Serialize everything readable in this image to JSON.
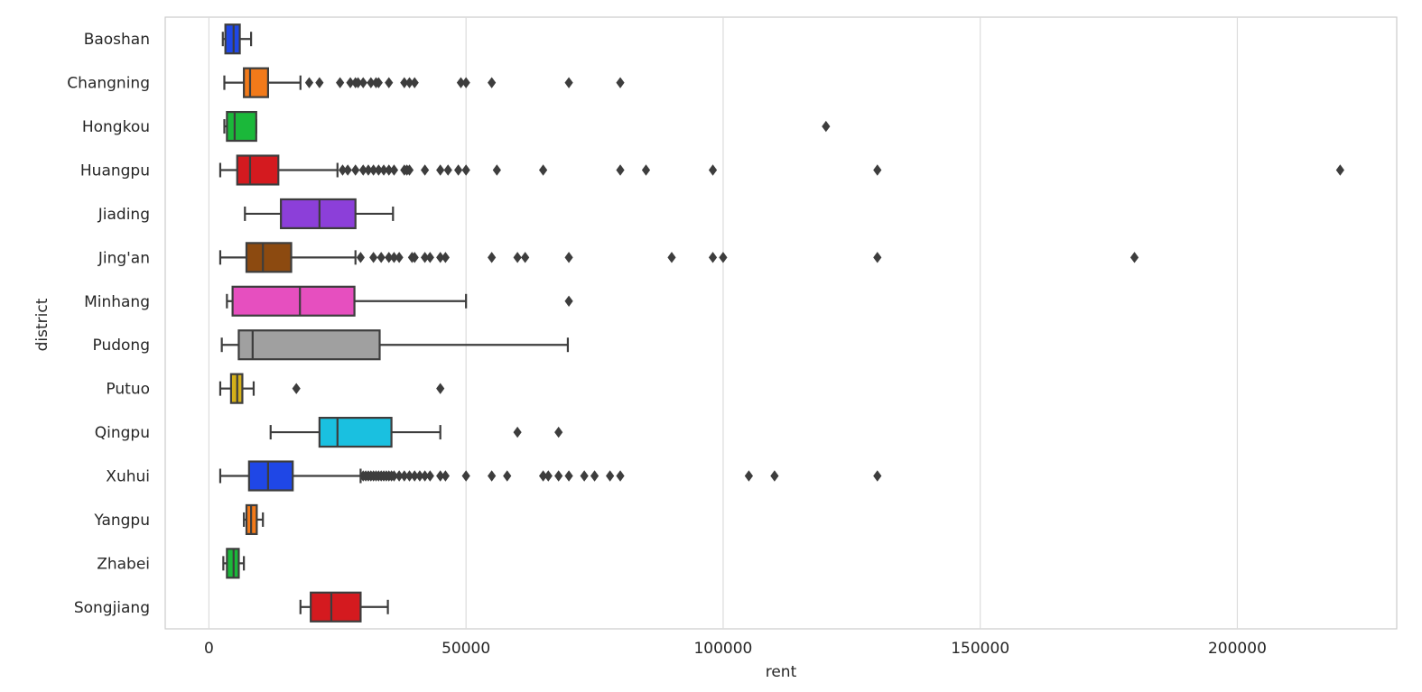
{
  "chart_data": {
    "type": "boxplot",
    "orientation": "horizontal",
    "xlabel": "rent",
    "ylabel": "district",
    "xlim": [
      -8500,
      231000
    ],
    "xticks": [
      0,
      50000,
      100000,
      150000,
      200000
    ],
    "xtick_labels": [
      "0",
      "50000",
      "100000",
      "150000",
      "200000"
    ],
    "grid": "vertical",
    "categories": [
      {
        "name": "Baoshan",
        "color": "#1f47e6",
        "whislo": 2700,
        "q1": 3200,
        "median": 4800,
        "q3": 6000,
        "whishi": 8200,
        "fliers": []
      },
      {
        "name": "Changning",
        "color": "#f27a1a",
        "whislo": 3000,
        "q1": 6800,
        "median": 8000,
        "q3": 11500,
        "whishi": 17800,
        "fliers": [
          19500,
          21500,
          25500,
          27500,
          28500,
          29000,
          30000,
          31500,
          32500,
          33000,
          35000,
          38000,
          39000,
          40000,
          49000,
          50000,
          55000,
          70000,
          80000
        ]
      },
      {
        "name": "Hongkou",
        "color": "#1bb83a",
        "whislo": 3000,
        "q1": 3500,
        "median": 5000,
        "q3": 9200,
        "whishi": 9200,
        "fliers": [
          120000
        ]
      },
      {
        "name": "Huangpu",
        "color": "#d41a1f",
        "whislo": 2200,
        "q1": 5500,
        "median": 8000,
        "q3": 13500,
        "whishi": 25000,
        "fliers": [
          26000,
          27000,
          28500,
          30000,
          31000,
          32000,
          33000,
          34000,
          35000,
          36000,
          38000,
          38500,
          39000,
          42000,
          45000,
          46500,
          48500,
          50000,
          56000,
          65000,
          80000,
          85000,
          98000,
          130000,
          220000
        ]
      },
      {
        "name": "Jiading",
        "color": "#8c3fd9",
        "whislo": 7000,
        "q1": 14000,
        "median": 21500,
        "q3": 28500,
        "whishi": 35800,
        "fliers": []
      },
      {
        "name": "Jing'an",
        "color": "#8c4a10",
        "whislo": 2200,
        "q1": 7300,
        "median": 10500,
        "q3": 16000,
        "whishi": 28500,
        "fliers": [
          29500,
          32000,
          33500,
          35000,
          36000,
          37000,
          39500,
          40000,
          42000,
          43000,
          45000,
          46000,
          55000,
          60000,
          61500,
          70000,
          90000,
          98000,
          100000,
          130000,
          180000
        ]
      },
      {
        "name": "Minhang",
        "color": "#e64fbf",
        "whislo": 3500,
        "q1": 4600,
        "median": 17700,
        "q3": 28300,
        "whishi": 50000,
        "fliers": [
          70000
        ]
      },
      {
        "name": "Pudong",
        "color": "#a0a0a0",
        "whislo": 2500,
        "q1": 5800,
        "median": 8500,
        "q3": 33200,
        "whishi": 69800,
        "fliers": []
      },
      {
        "name": "Putuo",
        "color": "#d4b01a",
        "whislo": 2200,
        "q1": 4300,
        "median": 5500,
        "q3": 6500,
        "whishi": 8700,
        "fliers": [
          17000,
          45000
        ]
      },
      {
        "name": "Qingpu",
        "color": "#1ac0e0",
        "whislo": 12000,
        "q1": 21500,
        "median": 25000,
        "q3": 35500,
        "whishi": 45000,
        "fliers": [
          60000,
          68000
        ]
      },
      {
        "name": "Xuhui",
        "color": "#1f47e6",
        "whislo": 2200,
        "q1": 7800,
        "median": 11500,
        "q3": 16300,
        "whishi": 29500,
        "fliers": [
          30000,
          30500,
          31000,
          31500,
          32000,
          32500,
          33000,
          33500,
          34000,
          34500,
          35000,
          35500,
          36000,
          37000,
          38000,
          39000,
          40000,
          41000,
          42000,
          43000,
          45000,
          46000,
          50000,
          55000,
          58000,
          65000,
          66000,
          68000,
          70000,
          73000,
          75000,
          78000,
          80000,
          105000,
          110000,
          130000
        ]
      },
      {
        "name": "Yangpu",
        "color": "#f27a1a",
        "whislo": 6800,
        "q1": 7300,
        "median": 8200,
        "q3": 9300,
        "whishi": 10500,
        "fliers": []
      },
      {
        "name": "Zhabei",
        "color": "#1bb83a",
        "whislo": 2800,
        "q1": 3500,
        "median": 4800,
        "q3": 5800,
        "whishi": 6800,
        "fliers": []
      },
      {
        "name": "Songjiang",
        "color": "#d41a1f",
        "whislo": 17800,
        "q1": 19800,
        "median": 23800,
        "q3": 29500,
        "whishi": 34800,
        "fliers": []
      }
    ]
  }
}
